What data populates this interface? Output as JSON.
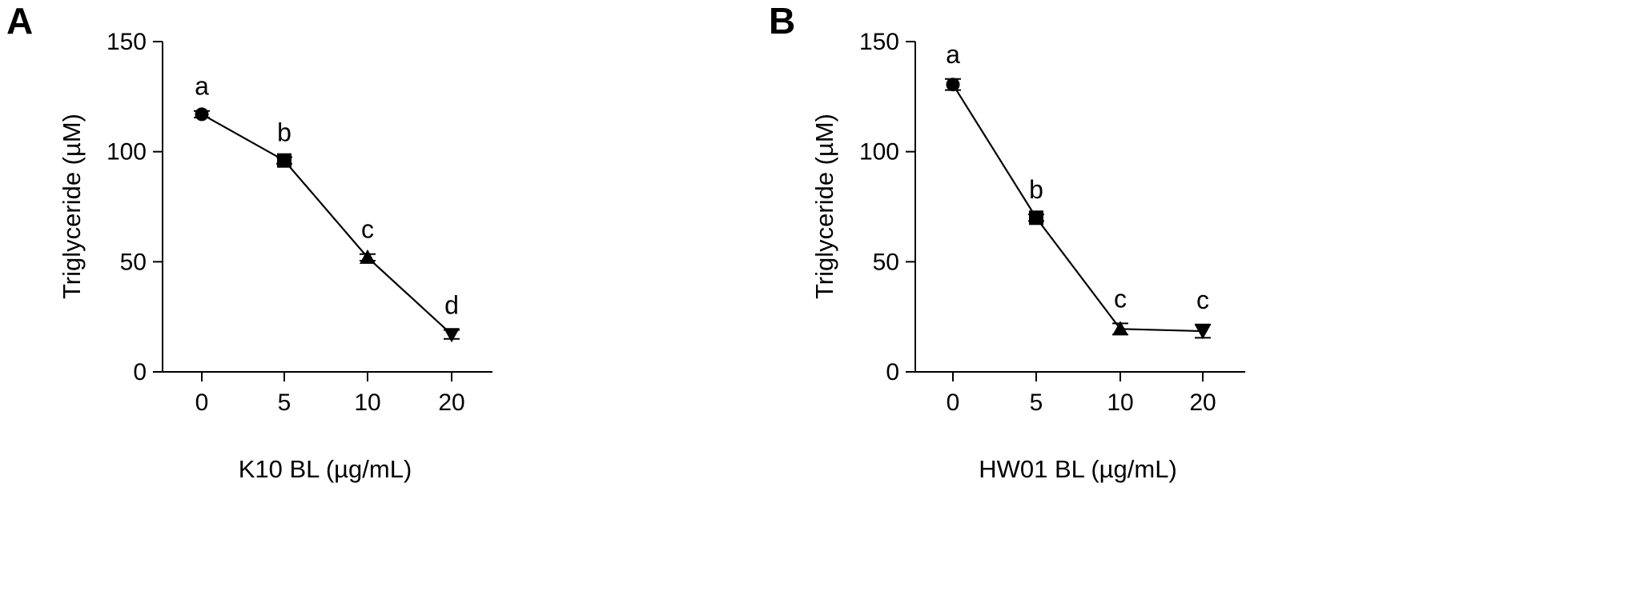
{
  "chart_data": [
    {
      "type": "line",
      "panel": "A",
      "title": "",
      "xlabel": "K10 BL (µg/mL)",
      "ylabel": "Triglyceride (µM)",
      "categories": [
        "0",
        "5",
        "10",
        "20"
      ],
      "ylim": [
        0,
        150
      ],
      "yticks": [
        0,
        50,
        100,
        150
      ],
      "grid": false,
      "legend": "none",
      "series": [
        {
          "values": [
            117,
            96,
            52,
            17
          ],
          "errors": [
            1.5,
            1.5,
            1.5,
            2
          ],
          "markers": [
            "circle",
            "square",
            "triangle-up",
            "triangle-down"
          ],
          "labels": [
            "a",
            "b",
            "c",
            "d"
          ]
        }
      ]
    },
    {
      "type": "line",
      "panel": "B",
      "title": "",
      "xlabel": "HW01 BL (µg/mL)",
      "ylabel": "Triglyceride (µM)",
      "categories": [
        "0",
        "5",
        "10",
        "20"
      ],
      "ylim": [
        0,
        150
      ],
      "yticks": [
        0,
        50,
        100,
        150
      ],
      "grid": false,
      "legend": "none",
      "series": [
        {
          "values": [
            130.5,
            70,
            19.5,
            18.5
          ],
          "errors": [
            2.5,
            1.5,
            2.5,
            3
          ],
          "markers": [
            "circle",
            "square",
            "triangle-up",
            "triangle-down"
          ],
          "labels": [
            "a",
            "b",
            "c",
            "c"
          ]
        }
      ]
    }
  ]
}
